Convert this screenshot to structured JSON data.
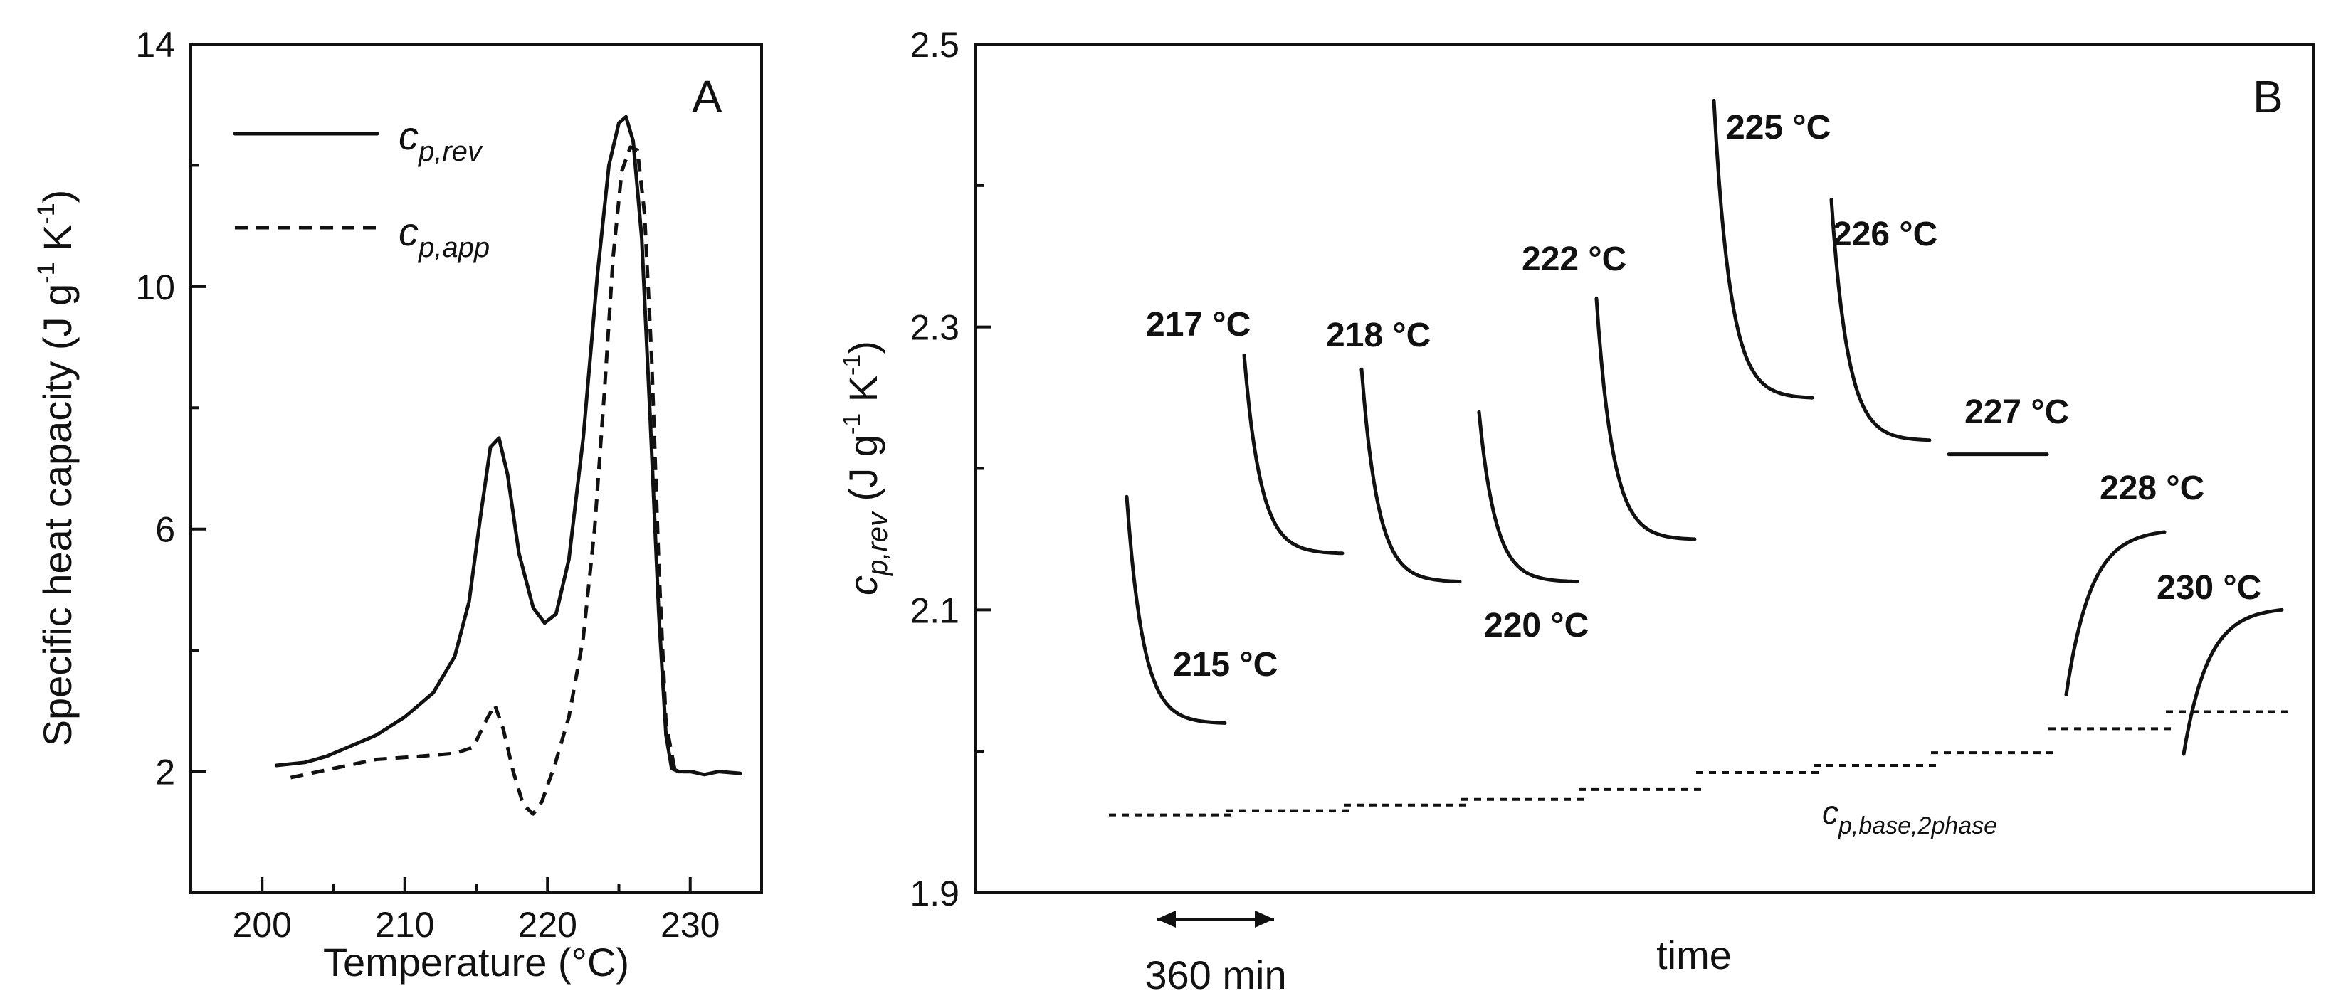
{
  "chart_data": [
    {
      "type": "line",
      "panel": "A",
      "xlabel": "Temperature (°C)",
      "ylabel": "Specific heat capacity (J g⁻¹ K⁻¹)",
      "ylabel_parts": {
        "main": "Specific heat capacity (J g",
        "exp1": "-1",
        "mid": " K",
        "exp2": "-1",
        "end": ")"
      },
      "xlim": [
        195,
        235
      ],
      "ylim": [
        0,
        14
      ],
      "xticks": [
        200,
        210,
        220,
        230
      ],
      "yticks": [
        2,
        6,
        10,
        14
      ],
      "legend_position": "top-left",
      "series": [
        {
          "name": "c_p,rev",
          "legend_main": "c",
          "legend_sub": "p,rev",
          "style": "solid",
          "x": [
            201,
            203,
            204.5,
            206,
            208,
            210,
            212,
            213.5,
            214.5,
            215.3,
            216,
            216.6,
            217.2,
            218,
            219,
            219.8,
            220.6,
            221.5,
            222.5,
            223.5,
            224.3,
            225,
            225.5,
            226,
            226.6,
            227.2,
            227.8,
            228.3,
            228.7,
            229.2,
            230,
            231,
            232,
            233.5
          ],
          "y": [
            2.1,
            2.15,
            2.25,
            2.4,
            2.6,
            2.9,
            3.3,
            3.9,
            4.8,
            6.2,
            7.35,
            7.5,
            6.9,
            5.6,
            4.7,
            4.45,
            4.6,
            5.5,
            7.5,
            10.2,
            12.0,
            12.7,
            12.8,
            12.4,
            10.8,
            7.8,
            4.6,
            2.6,
            2.05,
            2.0,
            2.0,
            1.95,
            2.0,
            1.97
          ]
        },
        {
          "name": "c_p,app",
          "legend_main": "c",
          "legend_sub": "p,app",
          "style": "dashed",
          "x": [
            202,
            205,
            208,
            211,
            213.5,
            214.8,
            215.6,
            216.3,
            216.9,
            217.6,
            218.3,
            219,
            219.6,
            220.5,
            221.5,
            222.5,
            223.3,
            224,
            224.6,
            225.2,
            225.8,
            226.3,
            226.8,
            227.3,
            227.8,
            228.3,
            228.9,
            229.5,
            230.5
          ],
          "y": [
            1.9,
            2.05,
            2.2,
            2.25,
            2.3,
            2.4,
            2.8,
            3.1,
            2.7,
            2.0,
            1.45,
            1.3,
            1.5,
            2.1,
            2.9,
            4.2,
            6.0,
            8.3,
            10.5,
            11.9,
            12.3,
            12.25,
            11.2,
            8.8,
            5.4,
            2.8,
            2.05,
            2.0,
            2.0
          ]
        }
      ]
    },
    {
      "type": "line",
      "panel": "B",
      "xlabel": "time",
      "ylabel_parts": {
        "main": "c",
        "sub": "p,rev",
        "rest": " (J g",
        "exp1": "-1",
        "mid": " K",
        "exp2": "-1",
        "end": ")"
      },
      "ylim": [
        1.9,
        2.5
      ],
      "yticks": [
        "1.9",
        "2.1",
        "2.3",
        "2.5"
      ],
      "scale_bar_label": "360 min",
      "baseline_label_main": "c",
      "baseline_label_sub": "p,base,2phase",
      "x_unit": "segment index (each segment spans 360 min)",
      "segments": [
        {
          "label": "215 °C",
          "start": 2.18,
          "end": 2.02,
          "shape": "decay",
          "baseline": 1.955
        },
        {
          "label": "217 °C",
          "start": 2.28,
          "end": 2.14,
          "shape": "decay",
          "baseline": 1.958
        },
        {
          "label": "218 °C",
          "start": 2.27,
          "end": 2.12,
          "shape": "decay",
          "baseline": 1.962
        },
        {
          "label": "220 °C",
          "start": 2.24,
          "end": 2.12,
          "shape": "decay",
          "baseline": 1.966
        },
        {
          "label": "222 °C",
          "start": 2.32,
          "end": 2.15,
          "shape": "decay",
          "baseline": 1.973
        },
        {
          "label": "225 °C",
          "start": 2.46,
          "end": 2.25,
          "shape": "decay",
          "baseline": 1.985
        },
        {
          "label": "226 °C",
          "start": 2.39,
          "end": 2.22,
          "shape": "decay",
          "baseline": 1.99
        },
        {
          "label": "227 °C",
          "start": 2.21,
          "end": 2.21,
          "shape": "flat",
          "baseline": 1.999
        },
        {
          "label": "228 °C",
          "start": 2.04,
          "end": 2.155,
          "shape": "rise",
          "baseline": 2.016
        },
        {
          "label": "230 °C",
          "start": 1.998,
          "end": 2.1,
          "shape": "rise",
          "baseline": 2.028
        }
      ]
    }
  ]
}
